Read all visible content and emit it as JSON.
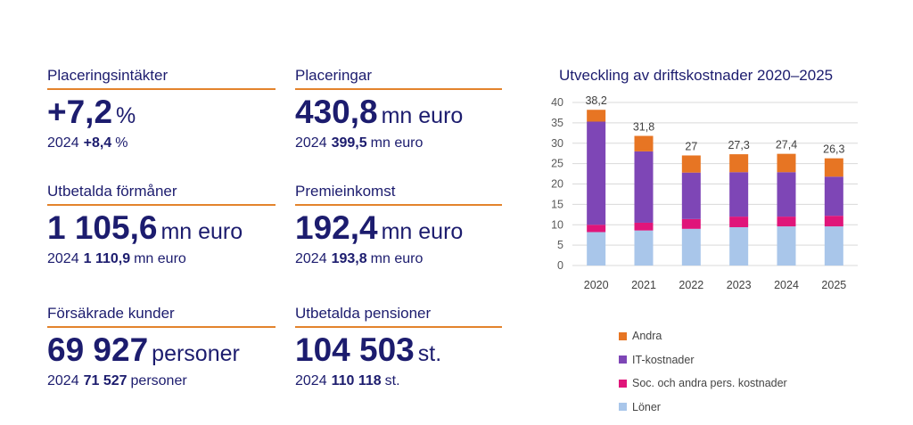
{
  "kpis": [
    {
      "title": "Placeringsintäkter",
      "value": "+7,2",
      "unit": "%",
      "prev_year": "2024",
      "prev_value": "+8,4",
      "prev_unit": "%"
    },
    {
      "title": "Placeringar",
      "value": "430,8",
      "unit": "mn euro",
      "prev_year": "2024",
      "prev_value": "399,5",
      "prev_unit": "mn euro"
    },
    {
      "title": "Utbetalda förmåner",
      "value": "1 105,6",
      "unit": "mn euro",
      "prev_year": "2024",
      "prev_value": "1 110,9",
      "prev_unit": "mn euro"
    },
    {
      "title": "Premieinkomst",
      "value": "192,4",
      "unit": "mn euro",
      "prev_year": "2024",
      "prev_value": "193,8",
      "prev_unit": "mn euro"
    },
    {
      "title": "Försäkrade kunder",
      "value": "69 927",
      "unit": "personer",
      "prev_year": "2024",
      "prev_value": "71 527",
      "prev_unit": "personer"
    },
    {
      "title": "Utbetalda pensioner",
      "value": "104 503",
      "unit": "st.",
      "prev_year": "2024",
      "prev_value": "110 118",
      "prev_unit": "st."
    }
  ],
  "chart_data": {
    "type": "bar",
    "stacked": true,
    "title": "Utveckling av driftskostnader 2020–2025",
    "categories": [
      "2020",
      "2021",
      "2022",
      "2023",
      "2024",
      "2025"
    ],
    "ylim": [
      0,
      40
    ],
    "yticks": [
      "0",
      "5",
      "10",
      "15",
      "20",
      "25",
      "30",
      "35",
      "40"
    ],
    "grid": true,
    "legend_position": "bottom-right",
    "series": [
      {
        "name": "Löner",
        "color": "#a9c6ea",
        "values": [
          8.2,
          8.6,
          9.0,
          9.4,
          9.6,
          9.6
        ]
      },
      {
        "name": "Soc. och andra pers. kostnader",
        "color": "#e0157a",
        "values": [
          1.8,
          1.9,
          2.4,
          2.6,
          2.4,
          2.6
        ]
      },
      {
        "name": "IT-kostnader",
        "color": "#7e46b6",
        "values": [
          25.3,
          17.5,
          11.4,
          10.9,
          10.9,
          9.6
        ]
      },
      {
        "name": "Andra",
        "color": "#e77523",
        "values": [
          2.9,
          3.8,
          4.2,
          4.4,
          4.5,
          4.5
        ]
      }
    ],
    "totals": [
      "38,2",
      "31,8",
      "27",
      "27,3",
      "27,4",
      "26,3"
    ]
  }
}
